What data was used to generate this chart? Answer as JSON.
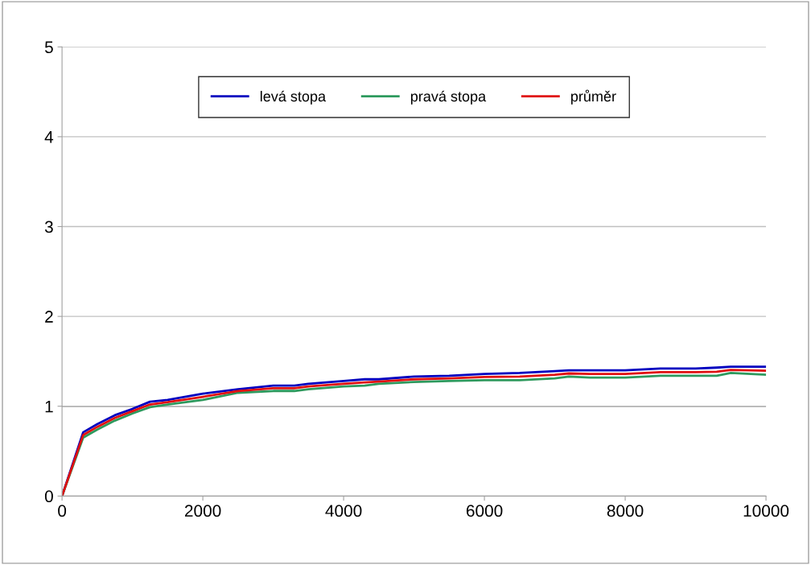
{
  "chart_data": {
    "type": "line",
    "x": [
      0,
      300,
      500,
      750,
      1000,
      1250,
      1500,
      2000,
      2500,
      3000,
      3300,
      3500,
      4000,
      4300,
      4500,
      5000,
      5500,
      6000,
      6500,
      7000,
      7200,
      7500,
      8000,
      8500,
      9000,
      9300,
      9500,
      10000
    ],
    "series": [
      {
        "name": "levá stopa",
        "color": "#0000c0",
        "values": [
          0,
          0.71,
          0.8,
          0.9,
          0.97,
          1.05,
          1.07,
          1.14,
          1.19,
          1.23,
          1.23,
          1.25,
          1.28,
          1.3,
          1.3,
          1.33,
          1.34,
          1.36,
          1.37,
          1.39,
          1.4,
          1.4,
          1.4,
          1.42,
          1.42,
          1.43,
          1.44,
          1.44
        ]
      },
      {
        "name": "pravá stopa",
        "color": "#2e9a5e",
        "values": [
          0,
          0.65,
          0.74,
          0.84,
          0.92,
          0.99,
          1.02,
          1.07,
          1.15,
          1.17,
          1.17,
          1.19,
          1.22,
          1.23,
          1.25,
          1.27,
          1.28,
          1.29,
          1.29,
          1.31,
          1.33,
          1.32,
          1.32,
          1.34,
          1.34,
          1.34,
          1.37,
          1.35
        ]
      },
      {
        "name": "průměr",
        "color": "#e01010",
        "values": [
          0,
          0.68,
          0.77,
          0.87,
          0.945,
          1.02,
          1.045,
          1.105,
          1.17,
          1.2,
          1.2,
          1.22,
          1.25,
          1.265,
          1.275,
          1.3,
          1.31,
          1.325,
          1.33,
          1.35,
          1.365,
          1.36,
          1.36,
          1.38,
          1.38,
          1.385,
          1.405,
          1.395
        ]
      }
    ],
    "xlim": [
      0,
      10000
    ],
    "xticks": [
      0,
      2000,
      4000,
      6000,
      8000,
      10000
    ],
    "ylim": [
      0,
      5
    ],
    "yticks": [
      0,
      1,
      2,
      3,
      4,
      5
    ],
    "grid": "y",
    "legend": "top",
    "ref_lines": [
      {
        "axis": "y",
        "value": 1,
        "color": "#606060"
      }
    ]
  }
}
